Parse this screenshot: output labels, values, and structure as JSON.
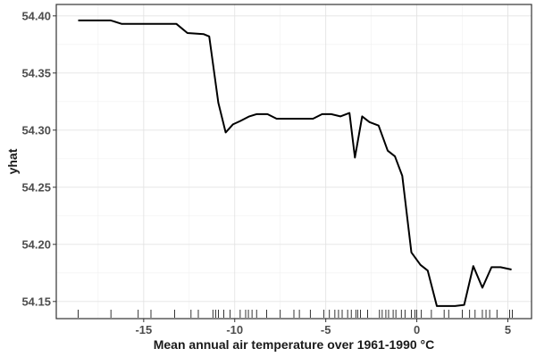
{
  "chart_data": {
    "type": "line",
    "title": "",
    "xlabel": "Mean annual air temperature over 1961-1990 °C",
    "ylabel": "yhat",
    "xlim": [
      -19.8,
      6.3
    ],
    "ylim": [
      54.135,
      54.41
    ],
    "x_ticks": [
      -15,
      -10,
      -5,
      0,
      5
    ],
    "x_tick_labels": [
      "-15",
      "-10",
      "-5",
      "0",
      "5"
    ],
    "y_ticks": [
      54.15,
      54.2,
      54.25,
      54.3,
      54.35,
      54.4
    ],
    "y_tick_labels": [
      "54.15",
      "54.20",
      "54.25",
      "54.30",
      "54.35",
      "54.40"
    ],
    "grid": true,
    "panel_border": true,
    "line_color": "#000000",
    "series": [
      {
        "x": [
          -18.6,
          -16.8,
          -16.2,
          -13.2,
          -12.6,
          -11.7,
          -11.4,
          -10.9,
          -10.5,
          -10.1,
          -9.7,
          -9.2,
          -8.8,
          -8.2,
          -7.7,
          -7.0,
          -6.5,
          -5.7,
          -5.2,
          -4.7,
          -4.2,
          -3.7,
          -3.4,
          -3.0,
          -2.6,
          -2.1,
          -1.6,
          -1.2,
          -0.8,
          -0.3,
          0.2,
          0.6,
          1.1,
          1.5,
          2.1,
          2.6,
          3.1,
          3.6,
          4.1,
          4.6,
          5.2
        ],
        "y": [
          54.396,
          54.396,
          54.393,
          54.393,
          54.385,
          54.384,
          54.382,
          54.324,
          54.298,
          54.305,
          54.308,
          54.312,
          54.314,
          54.314,
          54.31,
          54.31,
          54.31,
          54.31,
          54.314,
          54.314,
          54.312,
          54.315,
          54.276,
          54.312,
          54.307,
          54.304,
          54.282,
          54.277,
          54.26,
          54.193,
          54.182,
          54.177,
          54.146,
          54.146,
          54.146,
          54.147,
          54.181,
          54.162,
          54.18,
          54.18,
          54.178
        ]
      }
    ],
    "rug_x": [
      -18.6,
      -16.8,
      -15.3,
      -14.6,
      -13.3,
      -12.4,
      -12.0,
      -11.2,
      -11.05,
      -10.9,
      -10.6,
      -10.25,
      -9.7,
      -9.4,
      -9.25,
      -9.05,
      -8.8,
      -8.25,
      -7.5,
      -6.75,
      -6.45,
      -5.85,
      -5.1,
      -4.8,
      -4.5,
      -4.3,
      -4.1,
      -3.8,
      -3.6,
      -3.35,
      -3.25,
      -3.1,
      -2.7,
      -2.05,
      -1.9,
      -1.7,
      -1.55,
      -1.3,
      -1.15,
      -0.85,
      -0.65,
      -0.3,
      -0.1,
      0.0,
      0.25,
      0.8,
      1.5,
      1.75,
      2.5,
      2.9,
      3.2,
      3.6,
      3.8,
      4.0,
      4.4,
      5.1,
      5.25
    ]
  }
}
